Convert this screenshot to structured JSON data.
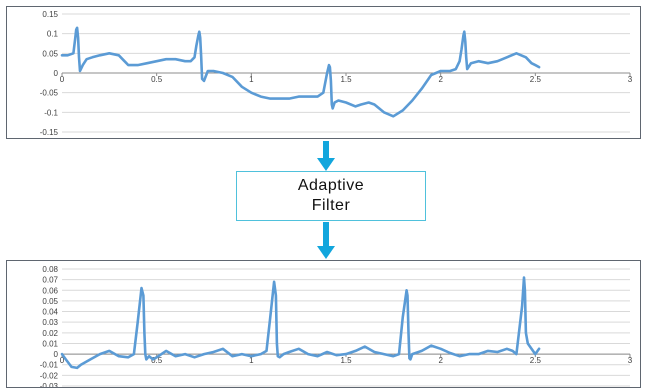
{
  "colors": {
    "signal": "#5b9bd5",
    "arrow": "#12a6dd",
    "box_border": "#4fc1dc",
    "grid": "#d9d9d9",
    "axis": "#8c8c8c"
  },
  "filter_box": {
    "line1": "Adaptive",
    "line2": "Filter"
  },
  "chart_data": [
    {
      "type": "line",
      "xlim": [
        0,
        3
      ],
      "ylim": [
        -0.15,
        0.15
      ],
      "x_ticks": [
        "0",
        "0.5",
        "1",
        "1.5",
        "2",
        "2.5",
        "3"
      ],
      "y_ticks": [
        "0.15",
        "0.1",
        "0.05",
        "0",
        "-0.05",
        "-0.1",
        "-0.15"
      ],
      "grid": true,
      "series": [
        {
          "x": [
            0,
            0.03,
            0.06,
            0.07,
            0.075,
            0.08,
            0.085,
            0.09,
            0.095,
            0.1,
            0.11,
            0.13,
            0.16,
            0.2,
            0.25,
            0.3,
            0.33,
            0.35,
            0.4,
            0.45,
            0.5,
            0.55,
            0.6,
            0.65,
            0.68,
            0.7,
            0.71,
            0.72,
            0.725,
            0.73,
            0.735,
            0.74,
            0.75,
            0.77,
            0.8,
            0.85,
            0.9,
            0.95,
            1.0,
            1.05,
            1.1,
            1.15,
            1.2,
            1.25,
            1.3,
            1.35,
            1.38,
            1.4,
            1.41,
            1.415,
            1.42,
            1.425,
            1.43,
            1.44,
            1.46,
            1.5,
            1.55,
            1.58,
            1.62,
            1.65,
            1.7,
            1.75,
            1.8,
            1.85,
            1.9,
            1.95,
            2.0,
            2.05,
            2.08,
            2.1,
            2.11,
            2.12,
            2.125,
            2.13,
            2.135,
            2.14,
            2.16,
            2.2,
            2.25,
            2.3,
            2.35,
            2.4,
            2.45,
            2.48,
            2.5,
            2.52
          ],
          "y": [
            0.045,
            0.045,
            0.05,
            0.09,
            0.11,
            0.115,
            0.09,
            0.04,
            0.005,
            0.01,
            0.02,
            0.035,
            0.04,
            0.045,
            0.05,
            0.045,
            0.03,
            0.02,
            0.02,
            0.025,
            0.03,
            0.035,
            0.035,
            0.03,
            0.03,
            0.04,
            0.07,
            0.095,
            0.105,
            0.09,
            0.04,
            -0.015,
            -0.02,
            0.005,
            0.005,
            0.0,
            -0.01,
            -0.035,
            -0.05,
            -0.06,
            -0.065,
            -0.065,
            -0.065,
            -0.06,
            -0.06,
            -0.06,
            -0.05,
            0.0,
            0.02,
            0.015,
            -0.02,
            -0.08,
            -0.09,
            -0.075,
            -0.07,
            -0.075,
            -0.085,
            -0.08,
            -0.075,
            -0.08,
            -0.1,
            -0.11,
            -0.095,
            -0.07,
            -0.04,
            -0.005,
            0.005,
            0.005,
            0.01,
            0.03,
            0.06,
            0.095,
            0.105,
            0.08,
            0.04,
            0.01,
            0.025,
            0.03,
            0.025,
            0.03,
            0.04,
            0.05,
            0.04,
            0.025,
            0.02,
            0.015
          ]
        }
      ]
    },
    {
      "type": "line",
      "xlim": [
        0,
        3
      ],
      "ylim": [
        -0.03,
        0.08
      ],
      "x_ticks": [
        "0",
        "0.5",
        "1",
        "1.5",
        "2",
        "2.5",
        "3"
      ],
      "y_ticks": [
        "0.08",
        "0.07",
        "0.06",
        "0.05",
        "0.04",
        "0.03",
        "0.02",
        "0.01",
        "0",
        "-0.01",
        "-0.02",
        "-0.03"
      ],
      "grid": true,
      "series": [
        {
          "x": [
            0,
            0.02,
            0.05,
            0.08,
            0.1,
            0.15,
            0.2,
            0.25,
            0.3,
            0.35,
            0.38,
            0.4,
            0.42,
            0.43,
            0.435,
            0.44,
            0.445,
            0.45,
            0.46,
            0.48,
            0.5,
            0.55,
            0.6,
            0.65,
            0.7,
            0.75,
            0.8,
            0.85,
            0.9,
            0.95,
            1.0,
            1.05,
            1.08,
            1.1,
            1.12,
            1.13,
            1.135,
            1.14,
            1.15,
            1.17,
            1.2,
            1.25,
            1.3,
            1.35,
            1.4,
            1.45,
            1.5,
            1.55,
            1.6,
            1.65,
            1.7,
            1.75,
            1.78,
            1.8,
            1.82,
            1.825,
            1.83,
            1.835,
            1.84,
            1.85,
            1.9,
            1.95,
            2.0,
            2.05,
            2.1,
            2.15,
            2.2,
            2.25,
            2.3,
            2.35,
            2.38,
            2.4,
            2.43,
            2.44,
            2.445,
            2.45,
            2.46,
            2.48,
            2.5,
            2.52
          ],
          "y": [
            0.0,
            -0.005,
            -0.012,
            -0.013,
            -0.01,
            -0.005,
            0.0,
            0.003,
            -0.002,
            -0.003,
            0.0,
            0.03,
            0.062,
            0.055,
            0.02,
            0.0,
            -0.005,
            -0.004,
            -0.002,
            -0.005,
            -0.003,
            0.003,
            -0.002,
            0.0,
            -0.003,
            0.0,
            0.002,
            0.005,
            -0.002,
            0.0,
            -0.002,
            0.0,
            0.003,
            0.035,
            0.068,
            0.055,
            0.01,
            -0.002,
            -0.003,
            0.0,
            0.002,
            0.005,
            0.0,
            -0.002,
            0.002,
            -0.001,
            0.0,
            0.003,
            0.007,
            0.002,
            0.0,
            -0.002,
            0.0,
            0.035,
            0.06,
            0.055,
            0.02,
            -0.004,
            -0.005,
            0.0,
            0.003,
            0.008,
            0.005,
            0.001,
            -0.002,
            0.0,
            0.0,
            0.003,
            0.002,
            0.005,
            0.003,
            0.0,
            0.045,
            0.072,
            0.06,
            0.02,
            0.01,
            0.005,
            0.0,
            0.005
          ]
        }
      ]
    }
  ]
}
